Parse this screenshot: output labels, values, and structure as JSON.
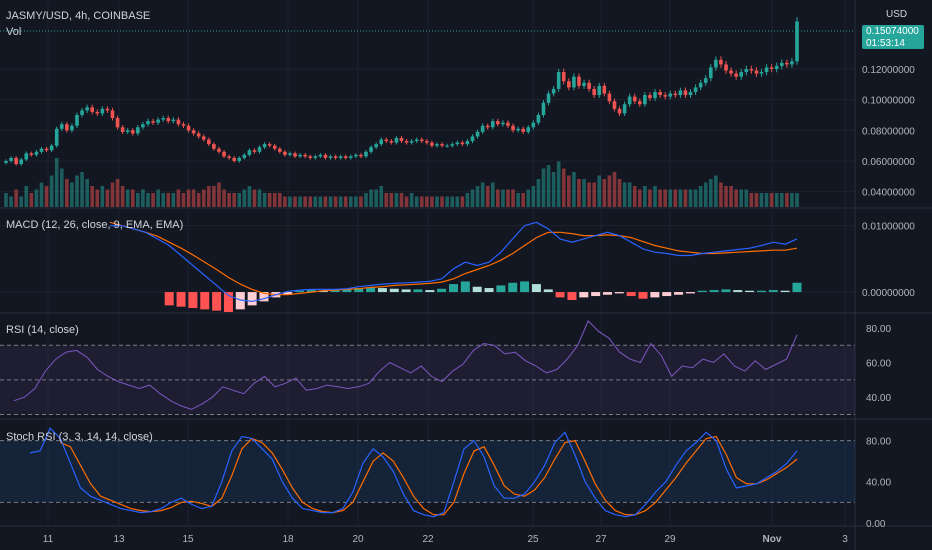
{
  "header": {
    "symbol_line": "JASMY/USD, 4h, COINBASE",
    "volume_label": "Vol",
    "currency": "USD"
  },
  "last_price_badge": {
    "price": "0.15074000",
    "countdown": "01:53:14",
    "color": "#26a69a"
  },
  "colors": {
    "up": "#26a69a",
    "down": "#ef5350",
    "macd_line": "#2962ff",
    "signal_line": "#ff6d00",
    "rsi_line": "#7e57c2",
    "stoch_k": "#2962ff",
    "stoch_d": "#ff6d00",
    "bg": "#131722"
  },
  "x_axis": {
    "labels": [
      "11",
      "13",
      "15",
      "18",
      "20",
      "22",
      "25",
      "27",
      "29",
      "Nov",
      "3"
    ]
  },
  "chart_data": [
    {
      "type": "candlestick",
      "pane": "price",
      "title": "JASMY/USD, 4h, COINBASE",
      "y_ticks": [
        "0.12000000",
        "0.10000000",
        "0.08000000",
        "0.06000000",
        "0.04000000"
      ],
      "ylim": [
        0.03,
        0.165
      ],
      "series": [
        {
          "name": "price",
          "close": [
            0.06,
            0.062,
            0.058,
            0.061,
            0.065,
            0.064,
            0.066,
            0.068,
            0.067,
            0.07,
            0.081,
            0.084,
            0.08,
            0.083,
            0.09,
            0.093,
            0.095,
            0.092,
            0.091,
            0.094,
            0.093,
            0.088,
            0.082,
            0.079,
            0.08,
            0.078,
            0.082,
            0.084,
            0.086,
            0.085,
            0.087,
            0.088,
            0.086,
            0.087,
            0.084,
            0.083,
            0.08,
            0.078,
            0.076,
            0.074,
            0.071,
            0.068,
            0.066,
            0.063,
            0.062,
            0.06,
            0.062,
            0.064,
            0.067,
            0.066,
            0.069,
            0.071,
            0.07,
            0.068,
            0.066,
            0.064,
            0.065,
            0.063,
            0.064,
            0.063,
            0.062,
            0.063,
            0.064,
            0.062,
            0.063,
            0.062,
            0.063,
            0.062,
            0.063,
            0.064,
            0.063,
            0.066,
            0.069,
            0.071,
            0.074,
            0.073,
            0.072,
            0.075,
            0.073,
            0.072,
            0.073,
            0.074,
            0.073,
            0.072,
            0.07,
            0.071,
            0.07,
            0.07,
            0.071,
            0.072,
            0.071,
            0.073,
            0.076,
            0.079,
            0.083,
            0.082,
            0.086,
            0.084,
            0.085,
            0.083,
            0.08,
            0.081,
            0.079,
            0.082,
            0.085,
            0.09,
            0.098,
            0.104,
            0.107,
            0.118,
            0.112,
            0.108,
            0.115,
            0.109,
            0.111,
            0.107,
            0.103,
            0.109,
            0.104,
            0.099,
            0.094,
            0.091,
            0.097,
            0.102,
            0.099,
            0.097,
            0.103,
            0.101,
            0.105,
            0.103,
            0.102,
            0.104,
            0.103,
            0.106,
            0.103,
            0.105,
            0.108,
            0.111,
            0.114,
            0.121,
            0.126,
            0.123,
            0.119,
            0.117,
            0.115,
            0.118,
            0.12,
            0.119,
            0.117,
            0.118,
            0.121,
            0.12,
            0.122,
            0.124,
            0.123,
            0.125,
            0.151
          ]
        },
        {
          "name": "Vol",
          "values": [
            4,
            3,
            5,
            3,
            6,
            4,
            5,
            7,
            6,
            9,
            14,
            11,
            8,
            7,
            9,
            10,
            8,
            6,
            5,
            6,
            5,
            7,
            8,
            6,
            5,
            5,
            4,
            5,
            4,
            4,
            5,
            4,
            4,
            4,
            5,
            4,
            5,
            5,
            4,
            5,
            6,
            6,
            7,
            5,
            4,
            4,
            4,
            5,
            6,
            5,
            5,
            4,
            4,
            4,
            4,
            3,
            3,
            3,
            3,
            3,
            3,
            3,
            3,
            3,
            3,
            3,
            3,
            3,
            3,
            3,
            3,
            4,
            5,
            5,
            6,
            4,
            4,
            4,
            4,
            3,
            4,
            3,
            3,
            3,
            3,
            3,
            3,
            3,
            3,
            3,
            3,
            4,
            5,
            6,
            7,
            6,
            7,
            5,
            5,
            5,
            5,
            4,
            4,
            5,
            6,
            8,
            11,
            12,
            10,
            13,
            11,
            9,
            10,
            8,
            8,
            7,
            7,
            9,
            8,
            9,
            10,
            8,
            7,
            7,
            6,
            5,
            6,
            5,
            6,
            5,
            5,
            5,
            5,
            5,
            5,
            5,
            5,
            6,
            7,
            8,
            9,
            7,
            6,
            6,
            5,
            5,
            5,
            4,
            4,
            4,
            4,
            4,
            4,
            4,
            4,
            4,
            4,
            7
          ]
        }
      ]
    },
    {
      "type": "line",
      "pane": "macd",
      "title": "MACD (12, 26, close, 9, EMA, EMA)",
      "y_ticks": [
        "0.01000000",
        "0.00000000"
      ],
      "ylim": [
        -0.003,
        0.0125
      ],
      "series": [
        {
          "name": "macd",
          "values": [
            0.01,
            0.01,
            0.0095,
            0.009,
            0.008,
            0.007,
            0.0055,
            0.004,
            0.0025,
            0.001,
            -0.0005,
            -0.0012,
            -0.0014,
            -0.001,
            -0.0004,
            0.0001,
            0.0003,
            0.0004,
            0.0004,
            0.0004,
            0.0005,
            0.0008,
            0.001,
            0.0012,
            0.0013,
            0.0014,
            0.0015,
            0.0016,
            0.002,
            0.0035,
            0.0045,
            0.004,
            0.0045,
            0.006,
            0.008,
            0.01,
            0.0105,
            0.0095,
            0.008,
            0.0075,
            0.008,
            0.0085,
            0.009,
            0.0085,
            0.0075,
            0.0065,
            0.006,
            0.0058,
            0.0055,
            0.0055,
            0.0058,
            0.006,
            0.0062,
            0.0064,
            0.0066,
            0.007,
            0.0075,
            0.0072,
            0.008
          ]
        },
        {
          "name": "signal",
          "values": [
            0.0105,
            0.01,
            0.0095,
            0.009,
            0.0084,
            0.0075,
            0.0066,
            0.0056,
            0.0045,
            0.0034,
            0.0022,
            0.0012,
            0.0004,
            -0.0002,
            -0.0004,
            -0.0004,
            -0.0002,
            0.0,
            0.0002,
            0.0003,
            0.0004,
            0.0005,
            0.0007,
            0.0008,
            0.001,
            0.0011,
            0.0012,
            0.0013,
            0.0015,
            0.002,
            0.0028,
            0.0034,
            0.004,
            0.0048,
            0.0058,
            0.007,
            0.0082,
            0.009,
            0.009,
            0.0088,
            0.0085,
            0.0085,
            0.0086,
            0.0085,
            0.0082,
            0.0076,
            0.007,
            0.0066,
            0.0062,
            0.006,
            0.0058,
            0.0058,
            0.0059,
            0.006,
            0.0061,
            0.0062,
            0.0063,
            0.0063,
            0.0066
          ]
        },
        {
          "name": "histogram",
          "values": [
            0,
            0,
            0,
            0,
            0,
            -0.002,
            -0.0022,
            -0.0024,
            -0.0026,
            -0.0028,
            -0.003,
            -0.0026,
            -0.002,
            -0.0014,
            -0.0008,
            -0.0004,
            0.0002,
            0.0003,
            0.0002,
            0.0003,
            0.0005,
            0.0006,
            0.0007,
            0.0006,
            0.0005,
            0.0004,
            0.0004,
            0.0003,
            0.0005,
            0.0012,
            0.0016,
            0.0008,
            0.0006,
            0.001,
            0.0014,
            0.0016,
            0.0012,
            0.0004,
            -0.0008,
            -0.0012,
            -0.0008,
            -0.0006,
            -0.0004,
            -0.0002,
            -0.0006,
            -0.001,
            -0.0008,
            -0.0006,
            -0.0004,
            -0.0002,
            0.0002,
            0.0003,
            0.0004,
            0.0003,
            0.0002,
            0.0002,
            0.0003,
            0.0002,
            0.0014
          ]
        }
      ]
    },
    {
      "type": "line",
      "pane": "rsi",
      "title": "RSI (14, close)",
      "y_ticks": [
        "80.00",
        "60.00",
        "40.00"
      ],
      "ylim": [
        28,
        88
      ],
      "bands": [
        70,
        50,
        30
      ],
      "series": [
        {
          "name": "rsi",
          "values": [
            38,
            40,
            45,
            55,
            62,
            66,
            67,
            63,
            56,
            52,
            49,
            47,
            45,
            47,
            42,
            38,
            35,
            33,
            36,
            40,
            46,
            44,
            42,
            48,
            52,
            46,
            48,
            51,
            44,
            45,
            47,
            46,
            45,
            46,
            48,
            55,
            60,
            57,
            54,
            58,
            52,
            49,
            55,
            59,
            67,
            71,
            70,
            65,
            66,
            61,
            58,
            54,
            56,
            62,
            70,
            84,
            78,
            74,
            66,
            62,
            60,
            71,
            64,
            52,
            58,
            57,
            62,
            60,
            65,
            58,
            55,
            61,
            56,
            59,
            62,
            76
          ]
        }
      ]
    },
    {
      "type": "line",
      "pane": "stoch_rsi",
      "title": "Stoch RSI (3, 3, 14, 14, close)",
      "y_ticks": [
        "80.00",
        "40.00",
        "0.00"
      ],
      "ylim": [
        -3,
        100
      ],
      "bands": [
        80,
        20
      ],
      "series": [
        {
          "name": "K",
          "values": [
            68,
            70,
            92,
            82,
            58,
            34,
            26,
            22,
            18,
            14,
            12,
            10,
            11,
            14,
            20,
            24,
            18,
            14,
            16,
            40,
            70,
            84,
            82,
            72,
            62,
            40,
            24,
            14,
            12,
            10,
            10,
            14,
            30,
            58,
            72,
            64,
            50,
            28,
            12,
            8,
            6,
            10,
            40,
            72,
            80,
            64,
            36,
            24,
            24,
            28,
            40,
            56,
            78,
            88,
            66,
            40,
            24,
            12,
            8,
            6,
            8,
            18,
            30,
            40,
            56,
            70,
            78,
            88,
            80,
            52,
            34,
            36,
            38,
            44,
            50,
            58,
            70
          ]
        },
        {
          "name": "D",
          "values": [
            null,
            null,
            null,
            78,
            74,
            56,
            38,
            26,
            22,
            18,
            14,
            12,
            11,
            12,
            15,
            20,
            21,
            19,
            16,
            24,
            46,
            72,
            82,
            78,
            68,
            52,
            34,
            20,
            14,
            11,
            10,
            12,
            20,
            40,
            60,
            68,
            60,
            44,
            26,
            14,
            8,
            8,
            20,
            48,
            70,
            74,
            56,
            36,
            28,
            26,
            32,
            44,
            62,
            78,
            80,
            60,
            38,
            22,
            12,
            8,
            8,
            12,
            20,
            32,
            44,
            58,
            70,
            82,
            84,
            66,
            44,
            38,
            38,
            42,
            48,
            54,
            62
          ]
        }
      ]
    }
  ]
}
